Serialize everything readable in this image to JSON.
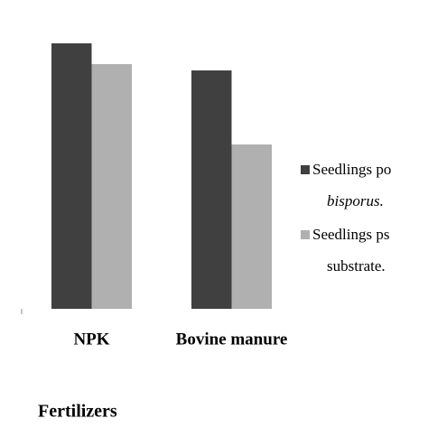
{
  "chart_data": {
    "type": "bar",
    "x_label": "Fertilizers",
    "categories": [
      "NPK",
      "Bovine manure"
    ],
    "series": [
      {
        "name": "Seedlings po",
        "name_cont": "bisporus.",
        "color": "#404040",
        "values": [
          294,
          264
        ]
      },
      {
        "name": "Seedlings ps",
        "name_cont": "substrate.",
        "color": "#b0b0b0",
        "values": [
          271,
          182
        ]
      }
    ],
    "ylim": [
      0,
      300
    ]
  }
}
